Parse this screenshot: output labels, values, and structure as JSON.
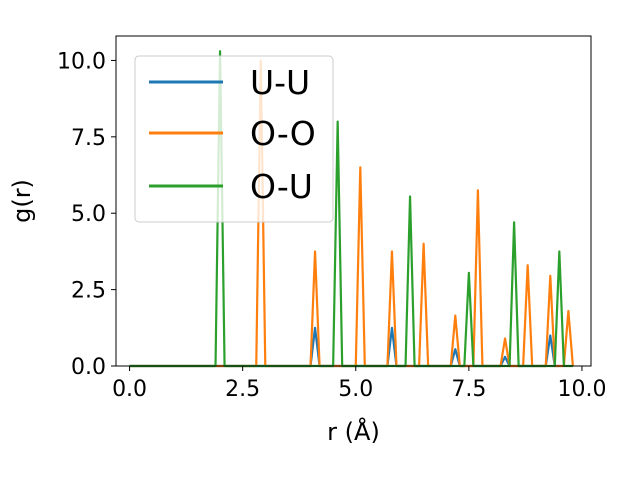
{
  "chart_data": {
    "type": "line",
    "title": "",
    "xlabel": "r (Å)",
    "ylabel": "g(r)",
    "xlim": [
      -0.3,
      10.2
    ],
    "ylim": [
      0,
      10.8
    ],
    "xticks": [
      0.0,
      2.5,
      5.0,
      7.5,
      10.0
    ],
    "xtick_labels": [
      "0.0",
      "2.5",
      "5.0",
      "7.5",
      "10.0"
    ],
    "yticks": [
      0.0,
      2.5,
      5.0,
      7.5,
      10.0
    ],
    "ytick_labels": [
      "0.0",
      "2.5",
      "5.0",
      "7.5",
      "10.0"
    ],
    "grid": false,
    "legend_position": "top-left",
    "series": [
      {
        "name": "U-U",
        "color": "#1f77b4",
        "x": [
          0.0,
          4.0,
          4.1,
          4.2,
          5.7,
          5.8,
          5.9,
          7.1,
          7.2,
          7.3,
          8.2,
          8.3,
          8.4,
          9.2,
          9.3,
          9.4,
          9.5
        ],
        "y": [
          0,
          0,
          1.25,
          0,
          0,
          1.25,
          0,
          0,
          0.55,
          0,
          0,
          0.3,
          0,
          0,
          1.0,
          0,
          0
        ]
      },
      {
        "name": "O-O",
        "color": "#ff7f0e",
        "x": [
          0.0,
          2.8,
          2.9,
          3.0,
          4.0,
          4.1,
          4.2,
          5.0,
          5.1,
          5.2,
          5.7,
          5.8,
          5.9,
          6.4,
          6.5,
          6.6,
          7.1,
          7.2,
          7.3,
          7.6,
          7.7,
          7.8,
          8.2,
          8.3,
          8.4,
          8.7,
          8.8,
          8.9,
          9.2,
          9.3,
          9.4,
          9.6,
          9.7,
          9.8
        ],
        "y": [
          0,
          0,
          10.0,
          0,
          0,
          3.75,
          0,
          0,
          6.5,
          0,
          0,
          3.75,
          0,
          0,
          4.0,
          0,
          0,
          1.65,
          0,
          0,
          5.75,
          0,
          0,
          0.9,
          0,
          0,
          3.3,
          0,
          0,
          2.95,
          0,
          0,
          1.8,
          0
        ]
      },
      {
        "name": "O-U",
        "color": "#2ca02c",
        "x": [
          0.0,
          1.9,
          2.0,
          2.1,
          4.5,
          4.6,
          4.7,
          6.1,
          6.2,
          6.3,
          7.4,
          7.5,
          7.6,
          8.4,
          8.5,
          8.6,
          9.4,
          9.5,
          9.6,
          9.8
        ],
        "y": [
          0,
          0,
          10.3,
          0,
          0,
          8.0,
          0,
          0,
          5.55,
          0,
          0,
          3.05,
          0,
          0,
          4.7,
          0,
          0,
          3.75,
          0,
          0
        ]
      }
    ]
  }
}
